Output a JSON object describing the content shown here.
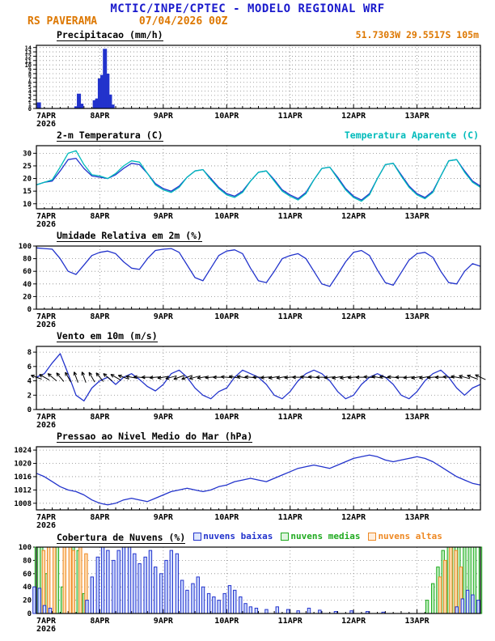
{
  "header": {
    "title": "MCTIC/INPE/CPTEC - MODELO REGIONAL WRF",
    "station": "RS PAVERAMA",
    "run": "07/04/2026 00Z"
  },
  "colors": {
    "title_blue": "#1a1acc",
    "accent_orange": "#dd7700",
    "line_blue": "#2233cc",
    "apparent_cyan": "#00bbbb",
    "cloud_green": "#1faa1f",
    "cloud_orange": "#ee8822"
  },
  "chart_data": {
    "x_axis": {
      "labels": [
        "7APR",
        "8APR",
        "9APR",
        "10APR",
        "11APR",
        "12APR",
        "13APR"
      ],
      "year": "2026",
      "xlim": [
        0,
        7
      ]
    },
    "panels": [
      {
        "id": "precip",
        "type": "bar",
        "title": "Precipitacao (mm/h)",
        "right_label": "51.7303W 29.5517S 105m",
        "ylim": [
          0,
          14.5
        ],
        "yticks": [
          0,
          1,
          2,
          3,
          4,
          5,
          6,
          7,
          8,
          9,
          10,
          11,
          12,
          13,
          14
        ],
        "yfont": 7,
        "color": "#2233cc",
        "bars": [
          [
            0.04,
            1.3
          ],
          [
            0.63,
            0.4
          ],
          [
            0.67,
            3.3
          ],
          [
            0.71,
            1.0
          ],
          [
            0.92,
            1.8
          ],
          [
            0.96,
            2.2
          ],
          [
            1.0,
            6.8
          ],
          [
            1.04,
            7.6
          ],
          [
            1.08,
            13.6
          ],
          [
            1.12,
            7.9
          ],
          [
            1.16,
            3.1
          ],
          [
            1.2,
            0.8
          ]
        ]
      },
      {
        "id": "temp",
        "type": "line",
        "title": "2-m Temperatura (C)",
        "right_label": "Temperatura Aparente (C)",
        "ylim": [
          8,
          33
        ],
        "yticks": [
          10,
          15,
          20,
          25,
          30
        ],
        "t0": 0,
        "dt": 0.125,
        "series": [
          {
            "name": "2-m Temperatura",
            "color": "#2233cc",
            "values": [
              17.5,
              18.5,
              19.0,
              23.0,
              27.5,
              28.0,
              24.0,
              21.0,
              20.5,
              20.0,
              21.5,
              24.0,
              26.0,
              25.5,
              22.0,
              18.0,
              16.0,
              15.0,
              17.0,
              20.5,
              23.0,
              23.5,
              20.0,
              16.5,
              14.0,
              13.0,
              15.0,
              19.0,
              22.5,
              23.0,
              19.5,
              15.5,
              13.5,
              12.0,
              14.5,
              19.5,
              24.0,
              24.5,
              20.5,
              16.0,
              13.0,
              11.5,
              14.0,
              20.0,
              25.5,
              26.0,
              21.5,
              17.0,
              14.0,
              12.5,
              15.0,
              21.0,
              27.0,
              27.5,
              23.0,
              19.0,
              17.0
            ]
          },
          {
            "name": "Temperatura Aparente",
            "color": "#00bbbb",
            "values": [
              17.5,
              18.5,
              19.5,
              24.5,
              30.0,
              31.0,
              25.5,
              21.5,
              21.0,
              20.0,
              22.0,
              25.0,
              27.0,
              26.5,
              22.0,
              17.5,
              15.5,
              14.5,
              16.5,
              20.5,
              23.0,
              23.5,
              19.5,
              16.0,
              13.5,
              12.5,
              14.5,
              19.0,
              22.5,
              23.0,
              19.0,
              15.0,
              13.0,
              11.5,
              14.0,
              19.5,
              24.0,
              24.5,
              20.0,
              15.5,
              12.5,
              11.0,
              13.5,
              20.0,
              25.5,
              26.0,
              21.0,
              16.5,
              13.5,
              12.0,
              14.5,
              21.0,
              27.0,
              27.5,
              22.5,
              18.5,
              16.5
            ]
          }
        ]
      },
      {
        "id": "rh",
        "type": "line",
        "title": "Umidade Relativa em 2m (%)",
        "right_label": "",
        "ylim": [
          0,
          100
        ],
        "yticks": [
          0,
          20,
          40,
          60,
          80,
          100
        ],
        "t0": 0,
        "dt": 0.125,
        "series": [
          {
            "name": "Umidade Relativa 2m",
            "color": "#2233cc",
            "values": [
              97,
              96,
              95,
              80,
              60,
              55,
              70,
              85,
              90,
              92,
              88,
              75,
              65,
              63,
              80,
              93,
              95,
              96,
              90,
              70,
              50,
              45,
              65,
              85,
              92,
              94,
              88,
              65,
              45,
              42,
              60,
              80,
              85,
              88,
              80,
              60,
              40,
              36,
              55,
              75,
              90,
              93,
              85,
              62,
              42,
              38,
              58,
              78,
              88,
              90,
              82,
              60,
              42,
              40,
              60,
              72,
              68
            ]
          }
        ]
      },
      {
        "id": "wind",
        "type": "wind",
        "title": "Vento em 10m (m/s)",
        "right_label": "",
        "ylim": [
          0,
          8.8
        ],
        "yticks": [
          0,
          2,
          4,
          6,
          8
        ],
        "t0": 0,
        "dt": 0.125,
        "series": [
          {
            "name": "Vento 10m",
            "color": "#2233cc",
            "values": [
              4.5,
              5.0,
              6.5,
              7.8,
              5.0,
              2.0,
              1.2,
              3.0,
              4.0,
              4.5,
              3.5,
              4.5,
              5.0,
              4.2,
              3.2,
              2.6,
              3.5,
              5.0,
              5.5,
              4.5,
              3.0,
              2.0,
              1.5,
              2.5,
              3.0,
              4.5,
              5.5,
              5.0,
              4.5,
              3.5,
              2.0,
              1.5,
              2.5,
              4.0,
              5.0,
              5.5,
              5.0,
              4.0,
              2.5,
              1.5,
              2.0,
              3.5,
              4.5,
              5.0,
              4.5,
              3.5,
              2.0,
              1.5,
              2.5,
              4.0,
              5.0,
              5.5,
              4.5,
              3.0,
              2.0,
              3.0,
              3.5
            ]
          }
        ],
        "barbs": {
          "y": 4.5,
          "dt": 0.125,
          "dirs": [
            200,
            210,
            220,
            230,
            240,
            250,
            250,
            240,
            230,
            220,
            210,
            200,
            190,
            185,
            180,
            175,
            170,
            165,
            160,
            160,
            165,
            170,
            175,
            180,
            185,
            190,
            190,
            185,
            180,
            175,
            170,
            170,
            175,
            180,
            185,
            185,
            180,
            175,
            170,
            170,
            175,
            180,
            185,
            190,
            190,
            185,
            180,
            175,
            170,
            170,
            175,
            180,
            185,
            190,
            195,
            200,
            205
          ]
        }
      },
      {
        "id": "pressure",
        "type": "line",
        "title": "Pressao ao Nivel Medio do Mar (hPa)",
        "right_label": "",
        "ylim": [
          1006,
          1025
        ],
        "yticks": [
          1008,
          1012,
          1016,
          1020,
          1024
        ],
        "t0": 0,
        "dt": 0.125,
        "series": [
          {
            "name": "Pressao nivel do mar",
            "color": "#2233cc",
            "values": [
              1017.0,
              1016.0,
              1014.5,
              1013.0,
              1012.0,
              1011.5,
              1010.5,
              1009.0,
              1008.0,
              1007.5,
              1008.0,
              1009.0,
              1009.5,
              1009.0,
              1008.5,
              1009.5,
              1010.5,
              1011.5,
              1012.0,
              1012.5,
              1012.0,
              1011.5,
              1012.0,
              1013.0,
              1013.5,
              1014.5,
              1015.0,
              1015.5,
              1015.0,
              1014.5,
              1015.5,
              1016.5,
              1017.5,
              1018.5,
              1019.0,
              1019.5,
              1019.0,
              1018.5,
              1019.5,
              1020.5,
              1021.5,
              1022.0,
              1022.5,
              1022.0,
              1021.0,
              1020.5,
              1021.0,
              1021.5,
              1022.0,
              1021.5,
              1020.5,
              1019.0,
              1017.5,
              1016.0,
              1015.0,
              1014.0,
              1013.5
            ]
          }
        ]
      },
      {
        "id": "clouds",
        "type": "multibar",
        "title": "Cobertura de Nuvens (%)",
        "ylim": [
          0,
          100
        ],
        "yticks": [
          0,
          20,
          40,
          60,
          80,
          100
        ],
        "series": [
          {
            "label": "nuvens baixas",
            "color": "#2233cc",
            "fill": "#ccd9ff",
            "points": [
              [
                0.0,
                40
              ],
              [
                0.08,
                38
              ],
              [
                0.16,
                12
              ],
              [
                0.25,
                8
              ],
              [
                0.83,
                20
              ],
              [
                0.91,
                55
              ],
              [
                1.0,
                85
              ],
              [
                1.08,
                100
              ],
              [
                1.16,
                95
              ],
              [
                1.25,
                80
              ],
              [
                1.33,
                95
              ],
              [
                1.41,
                100
              ],
              [
                1.5,
                100
              ],
              [
                1.58,
                90
              ],
              [
                1.66,
                75
              ],
              [
                1.75,
                85
              ],
              [
                1.83,
                95
              ],
              [
                1.91,
                70
              ],
              [
                2.0,
                60
              ],
              [
                2.08,
                80
              ],
              [
                2.16,
                95
              ],
              [
                2.25,
                90
              ],
              [
                2.33,
                50
              ],
              [
                2.41,
                35
              ],
              [
                2.5,
                45
              ],
              [
                2.58,
                55
              ],
              [
                2.66,
                40
              ],
              [
                2.75,
                30
              ],
              [
                2.83,
                25
              ],
              [
                2.91,
                20
              ],
              [
                3.0,
                30
              ],
              [
                3.08,
                42
              ],
              [
                3.16,
                35
              ],
              [
                3.25,
                25
              ],
              [
                3.33,
                15
              ],
              [
                3.41,
                10
              ],
              [
                3.5,
                8
              ],
              [
                3.66,
                6
              ],
              [
                3.83,
                10
              ],
              [
                4.0,
                6
              ],
              [
                4.16,
                4
              ],
              [
                4.33,
                8
              ],
              [
                4.5,
                5
              ],
              [
                4.75,
                3
              ],
              [
                5.0,
                4
              ],
              [
                5.25,
                3
              ],
              [
                5.5,
                2
              ],
              [
                6.66,
                10
              ],
              [
                6.75,
                22
              ],
              [
                6.83,
                35
              ],
              [
                6.91,
                28
              ],
              [
                7.0,
                20
              ]
            ]
          },
          {
            "label": "nuvens medias",
            "color": "#1faa1f",
            "fill": "#bdeebd",
            "points": [
              [
                0.0,
                100
              ],
              [
                0.08,
                100
              ],
              [
                0.16,
                60
              ],
              [
                0.33,
                100
              ],
              [
                0.41,
                40
              ],
              [
                0.58,
                100
              ],
              [
                0.66,
                95
              ],
              [
                0.75,
                30
              ],
              [
                6.16,
                20
              ],
              [
                6.25,
                45
              ],
              [
                6.33,
                70
              ],
              [
                6.41,
                95
              ],
              [
                6.5,
                100
              ],
              [
                6.58,
                100
              ],
              [
                6.66,
                100
              ],
              [
                6.75,
                100
              ],
              [
                6.83,
                100
              ],
              [
                6.91,
                100
              ],
              [
                7.0,
                100
              ]
            ]
          },
          {
            "label": "nuvens altas",
            "color": "#ee8822",
            "fill": "#ffddb3",
            "points": [
              [
                0.08,
                95
              ],
              [
                0.16,
                100
              ],
              [
                0.25,
                100
              ],
              [
                0.41,
                100
              ],
              [
                0.5,
                100
              ],
              [
                0.55,
                95
              ],
              [
                0.66,
                100
              ],
              [
                0.75,
                90
              ],
              [
                6.33,
                55
              ],
              [
                6.41,
                80
              ],
              [
                6.5,
                100
              ],
              [
                6.58,
                95
              ],
              [
                6.66,
                70
              ]
            ]
          }
        ]
      }
    ]
  }
}
